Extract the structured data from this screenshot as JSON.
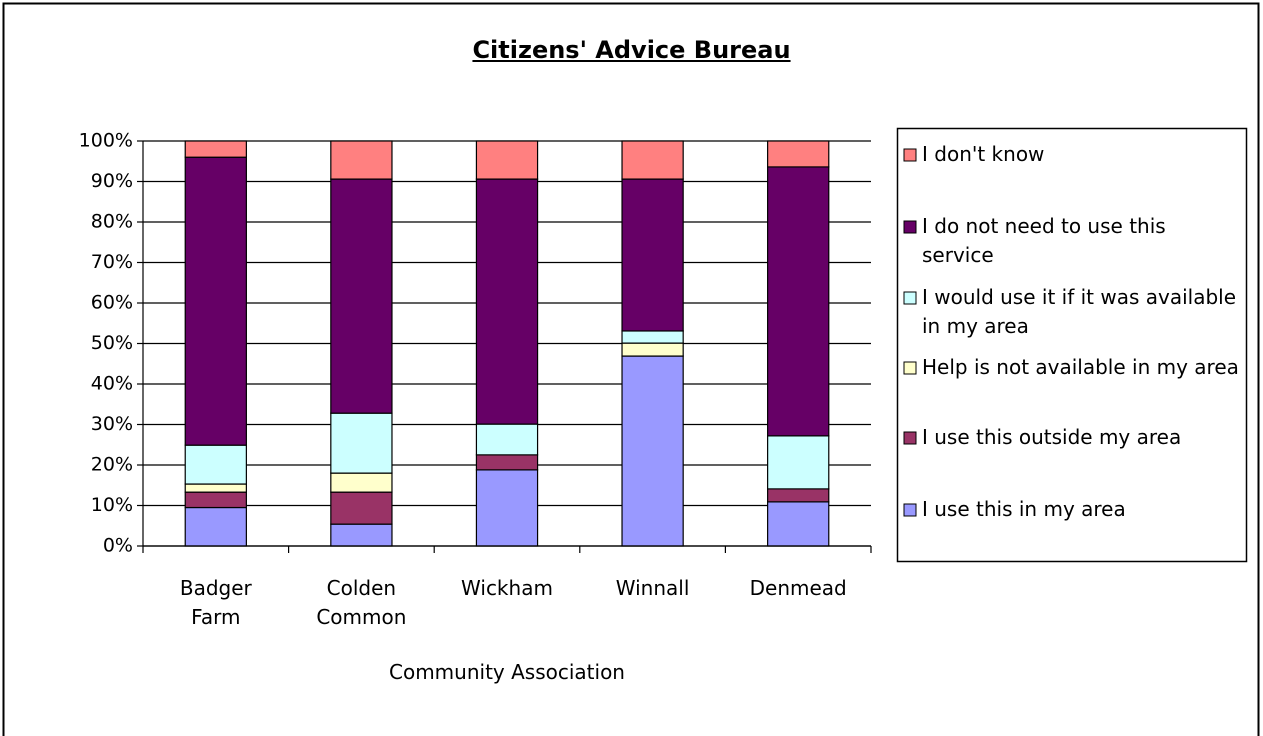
{
  "chart_data": {
    "type": "stacked_bar",
    "title": "Citizens' Advice Bureau",
    "x_label": "Community Association",
    "categories": [
      "Badger Farm",
      "Colden Common",
      "Wickham",
      "Winnall",
      "Denmead"
    ],
    "series": [
      {
        "name": "I use this in my area",
        "color": "#9999ff",
        "values": [
          9.5,
          5.4,
          18.8,
          46.9,
          10.9
        ]
      },
      {
        "name": "I use this outside my area",
        "color": "#993366",
        "values": [
          3.8,
          7.9,
          3.7,
          0,
          3.2
        ]
      },
      {
        "name": "Help is not available in my area",
        "color": "#ffffcc",
        "values": [
          2,
          4.7,
          0,
          3.2,
          0
        ]
      },
      {
        "name": "I would use it if it was available in my area",
        "color": "#ccffff",
        "values": [
          9.6,
          14.8,
          7.6,
          3,
          13.1
        ]
      },
      {
        "name": "I do not need to use this service",
        "color": "#660066",
        "values": [
          71.1,
          57.8,
          60.5,
          37.5,
          66.4
        ]
      },
      {
        "name": "I don't know",
        "color": "#ff8080",
        "values": [
          4,
          9.4,
          9.4,
          9.4,
          6.4
        ]
      }
    ],
    "ylim": [
      0,
      100
    ],
    "yticks": [
      {
        "value": 0,
        "label": "0%"
      },
      {
        "value": 10,
        "label": "10%"
      },
      {
        "value": 20,
        "label": "20%"
      },
      {
        "value": 30,
        "label": "30%"
      },
      {
        "value": 40,
        "label": "40%"
      },
      {
        "value": 50,
        "label": "50%"
      },
      {
        "value": 60,
        "label": "60%"
      },
      {
        "value": 70,
        "label": "70%"
      },
      {
        "value": 80,
        "label": "80%"
      },
      {
        "value": 90,
        "label": "90%"
      },
      {
        "value": 100,
        "label": "100%"
      }
    ],
    "grid": true,
    "legend": "right"
  }
}
